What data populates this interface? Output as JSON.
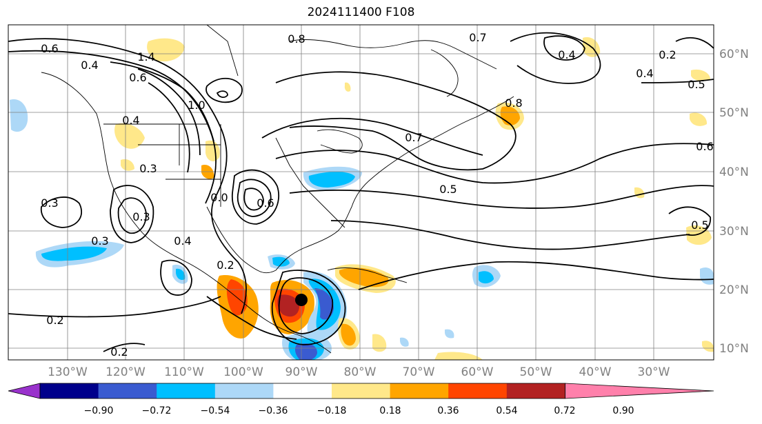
{
  "title": "2024111400 F108",
  "map": {
    "lon_labels": [
      "130°W",
      "120°W",
      "110°W",
      "100°W",
      "90°W",
      "80°W",
      "70°W",
      "60°W",
      "50°W",
      "40°W",
      "30°W"
    ],
    "lat_labels": [
      "60°N",
      "50°N",
      "40°N",
      "30°N",
      "20°N",
      "10°N"
    ],
    "contour_labels": [
      "0.8",
      "0.6",
      "1.4",
      "0.4",
      "0.6",
      "1.0",
      "0.4",
      "0.3",
      "0.3",
      "0.3",
      "0.7",
      "0.8",
      "0.4",
      "0.2",
      "0.4",
      "0.5",
      "0.7",
      "0.6",
      "0.5",
      "0.5",
      "0.3",
      "0.2",
      "0.2",
      "0.2",
      "0.0",
      "0.4",
      "0.6"
    ],
    "storm_marker": "storm-center",
    "colors": {
      "contour": "#000000",
      "grid": "#808080",
      "coast": "#000000"
    }
  },
  "colorbar": {
    "tick_labels": [
      "−0.90",
      "−0.72",
      "−0.54",
      "−0.36",
      "−0.18",
      "0.18",
      "0.36",
      "0.54",
      "0.72",
      "0.90"
    ],
    "colors": [
      "#9932cc",
      "#00008b",
      "#3a5bd0",
      "#00bfff",
      "#add8f7",
      "#ffffff",
      "#ffe88a",
      "#ffa500",
      "#ff4500",
      "#b22222",
      "#ff80ab"
    ]
  }
}
